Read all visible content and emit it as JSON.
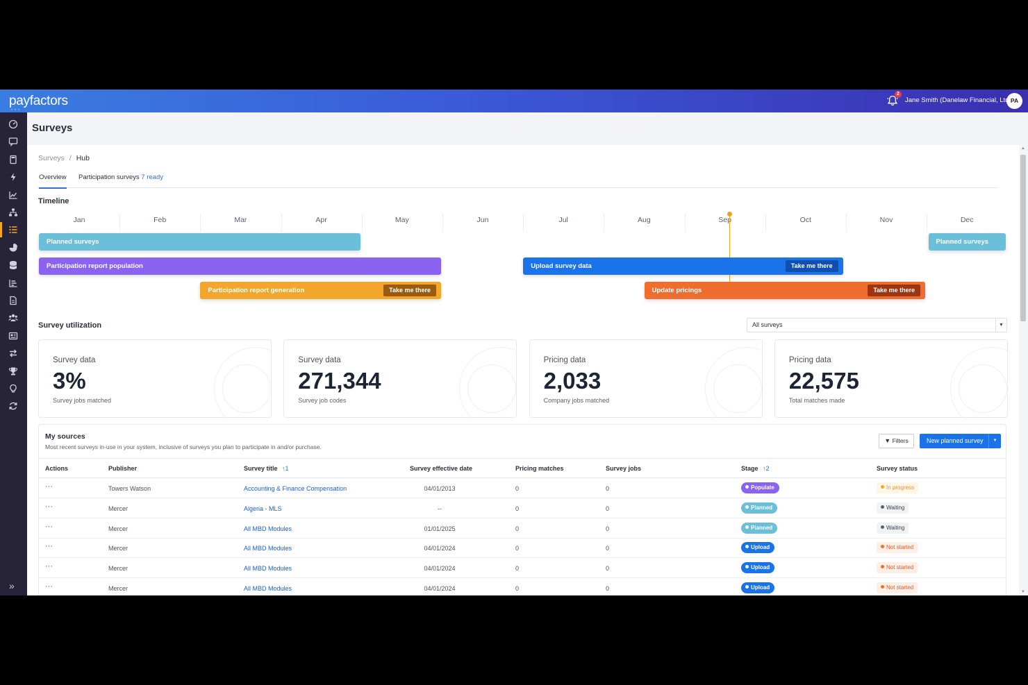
{
  "header": {
    "logo": "payfactors",
    "notification_count": "2",
    "user_name": "Jane Smith (Danelaw Financial, Ltd.)",
    "avatar_initials": "PA"
  },
  "sidebar": {
    "icons": [
      "dashboard-icon",
      "comment-icon",
      "calculator-icon",
      "bolt-icon",
      "chart-line-icon",
      "org-chart-icon",
      "list-icon",
      "pie-chart-icon",
      "database-icon",
      "bar-chart-icon",
      "document-icon",
      "users-icon",
      "newspaper-icon",
      "exchange-icon",
      "trophy-icon",
      "lightbulb-icon",
      "refresh-icon"
    ],
    "active_index": 6,
    "expand_label": "»"
  },
  "page": {
    "title": "Surveys"
  },
  "breadcrumb": {
    "root": "Surveys",
    "sep": "/",
    "current": "Hub"
  },
  "tabs": [
    {
      "label": "Overview",
      "count": ""
    },
    {
      "label": "Participation surveys",
      "count": "7 ready"
    }
  ],
  "timeline": {
    "title": "Timeline",
    "months": [
      "Jan",
      "Feb",
      "Mar",
      "Apr",
      "May",
      "Jun",
      "Jul",
      "Aug",
      "Sep",
      "Oct",
      "Nov",
      "Dec"
    ],
    "today_month": 8.55,
    "bars": [
      {
        "label": "Planned surveys",
        "start": 0,
        "end": 4,
        "row": 0,
        "color": "#6bbfd9",
        "action": ""
      },
      {
        "label": "Planned surveys",
        "start": 11.02,
        "end": 12,
        "row": 0,
        "color": "#6bbfd9",
        "action": ""
      },
      {
        "label": "Participation report population",
        "start": 0,
        "end": 5,
        "row": 1,
        "color": "#8a63f0",
        "action": ""
      },
      {
        "label": "Upload survey data",
        "start": 6,
        "end": 9.98,
        "row": 1,
        "color": "#1a73e8",
        "action": "Take me there",
        "btn_color": "#0f4fae"
      },
      {
        "label": "Participation report generation",
        "start": 2,
        "end": 5,
        "row": 2,
        "color": "#f2a62b",
        "action": "Take me there",
        "btn_color": "#9a5a10"
      },
      {
        "label": "Update pricings",
        "start": 7.5,
        "end": 11,
        "row": 2,
        "color": "#ee6d2f",
        "action": "Take me there",
        "btn_color": "#9e3512"
      }
    ]
  },
  "utilization": {
    "title": "Survey utilization",
    "filter_value": "All surveys",
    "cards": [
      {
        "label": "Survey data",
        "value": "3%",
        "sub": "Survey jobs matched"
      },
      {
        "label": "Survey data",
        "value": "271,344",
        "sub": "Survey job codes"
      },
      {
        "label": "Pricing data",
        "value": "2,033",
        "sub": "Company jobs matched"
      },
      {
        "label": "Pricing data",
        "value": "22,575",
        "sub": "Total matches made"
      }
    ]
  },
  "sources": {
    "title": "My sources",
    "description": "Most recent surveys in-use in your system, inclusive of surveys you plan to participate in and/or purchase.",
    "filters_label": "Filters",
    "new_button_label": "New planned survey",
    "columns": {
      "actions": "Actions",
      "publisher": "Publisher",
      "title": "Survey title",
      "title_sort": "↑1",
      "date": "Survey effective date",
      "pricing": "Pricing matches",
      "jobs": "Survey jobs",
      "stage": "Stage",
      "stage_sort": "↑2",
      "status": "Survey status"
    },
    "rows": [
      {
        "actions": "···",
        "publisher": "Towers Watson",
        "title": "Accounting & Finance Compensation",
        "date": "04/01/2013",
        "pricing": "0",
        "jobs": "0",
        "stage": "Populate",
        "stage_color": "#8a63f0",
        "status": "In progress",
        "status_color": "#f2a62b",
        "status_bg": "#fff6e6",
        "status_text_color": "#e8902a"
      },
      {
        "actions": "···",
        "publisher": "Mercer",
        "title": "Algeria - MLS",
        "date": "--",
        "pricing": "0",
        "jobs": "0",
        "stage": "Planned",
        "stage_color": "#6bbfd9",
        "status": "Waiting",
        "status_color": "#5a6270",
        "status_bg": "#f1f2f4",
        "status_text_color": "#3a404c"
      },
      {
        "actions": "···",
        "publisher": "Mercer",
        "title": "All MBD Modules",
        "date": "01/01/2025",
        "pricing": "0",
        "jobs": "0",
        "stage": "Planned",
        "stage_color": "#6bbfd9",
        "status": "Waiting",
        "status_color": "#5a6270",
        "status_bg": "#f1f2f4",
        "status_text_color": "#3a404c"
      },
      {
        "actions": "···",
        "publisher": "Mercer",
        "title": "All MBD Modules",
        "date": "04/01/2024",
        "pricing": "0",
        "jobs": "0",
        "stage": "Upload",
        "stage_color": "#1a73e8",
        "status": "Not started",
        "status_color": "#ee6d2f",
        "status_bg": "#fdeee6",
        "status_text_color": "#e0592a"
      },
      {
        "actions": "···",
        "publisher": "Mercer",
        "title": "All MBD Modules",
        "date": "04/01/2024",
        "pricing": "0",
        "jobs": "0",
        "stage": "Upload",
        "stage_color": "#1a73e8",
        "status": "Not started",
        "status_color": "#ee6d2f",
        "status_bg": "#fdeee6",
        "status_text_color": "#e0592a"
      },
      {
        "actions": "···",
        "publisher": "Mercer",
        "title": "All MBD Modules",
        "date": "04/01/2024",
        "pricing": "0",
        "jobs": "0",
        "stage": "Upload",
        "stage_color": "#1a73e8",
        "status": "Not started",
        "status_color": "#ee6d2f",
        "status_bg": "#fdeee6",
        "status_text_color": "#e0592a"
      }
    ]
  }
}
